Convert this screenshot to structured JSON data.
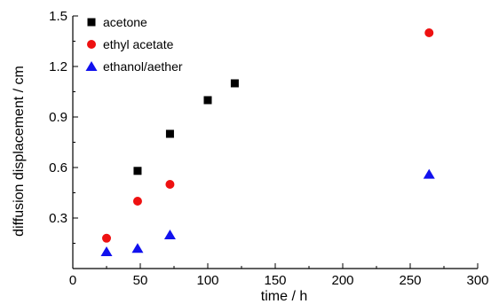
{
  "chart_data": {
    "type": "scatter",
    "xlabel": "time / h",
    "ylabel": "diffusion displacement / cm",
    "xlim": [
      0,
      300
    ],
    "ylim": [
      0,
      1.5
    ],
    "xticks": [
      0,
      50,
      100,
      150,
      200,
      250,
      300
    ],
    "xtick_labels": [
      "0",
      "50",
      "100",
      "150",
      "200",
      "250",
      "300"
    ],
    "yticks": [
      0.3,
      0.6,
      0.9,
      1.2,
      1.5
    ],
    "ytick_labels": [
      "0.3",
      "0.6",
      "0.9",
      "1.2",
      "1.5"
    ],
    "grid": false,
    "legend_position": "top-left",
    "series": [
      {
        "name": "acetone",
        "marker": "square",
        "color": "#000000",
        "x": [
          48,
          72,
          100,
          120
        ],
        "y": [
          0.58,
          0.8,
          1.0,
          1.1
        ]
      },
      {
        "name": "ethyl acetate",
        "marker": "circle",
        "color": "#ee1111",
        "x": [
          25,
          48,
          72,
          264
        ],
        "y": [
          0.18,
          0.4,
          0.5,
          1.4
        ]
      },
      {
        "name": "ethanol/aether",
        "marker": "triangle",
        "color": "#1111ee",
        "x": [
          25,
          48,
          72,
          264
        ],
        "y": [
          0.1,
          0.12,
          0.2,
          0.56
        ]
      }
    ]
  }
}
